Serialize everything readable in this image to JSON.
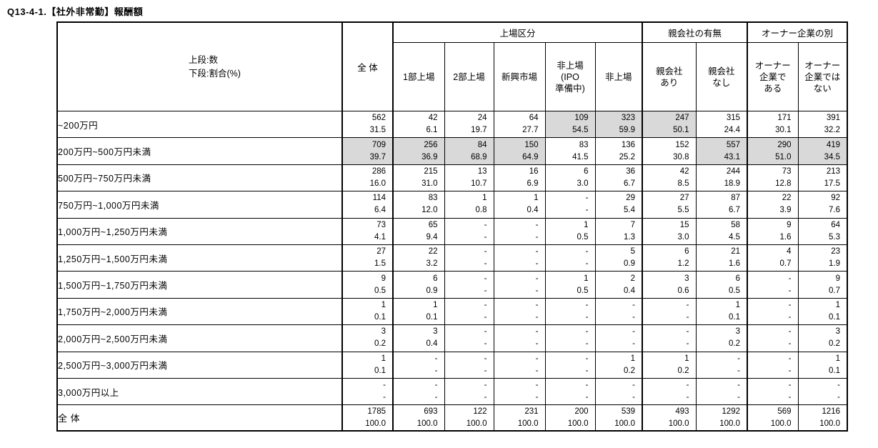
{
  "title": "Q13-4-1.【社外非常勤】報酬額",
  "table": {
    "legend": [
      "上段:数",
      "下段:割合(%)"
    ],
    "total_col_header": "全 体",
    "groups": [
      {
        "label": "上場区分",
        "cols": [
          "1部上場",
          "2部上場",
          "新興市場",
          "非上場\n(IPO\n準備中)",
          "非上場"
        ]
      },
      {
        "label": "親会社の有無",
        "cols": [
          "親会社\nあり",
          "親会社\nなし"
        ]
      },
      {
        "label": "オーナー企業の別",
        "cols": [
          "オーナー\n企業で\nある",
          "オーナー\n企業では\nない"
        ]
      }
    ],
    "highlight_color": "#d9d9d9",
    "rows": [
      {
        "label": "~200万円",
        "counts": [
          "562",
          "42",
          "24",
          "64",
          "109",
          "323",
          "247",
          "315",
          "171",
          "391"
        ],
        "pcts": [
          "31.5",
          "6.1",
          "19.7",
          "27.7",
          "54.5",
          "59.9",
          "50.1",
          "24.4",
          "30.1",
          "32.2"
        ],
        "highlight": [
          4,
          5,
          6
        ]
      },
      {
        "label": "200万円~500万円未満",
        "counts": [
          "709",
          "256",
          "84",
          "150",
          "83",
          "136",
          "152",
          "557",
          "290",
          "419"
        ],
        "pcts": [
          "39.7",
          "36.9",
          "68.9",
          "64.9",
          "41.5",
          "25.2",
          "30.8",
          "43.1",
          "51.0",
          "34.5"
        ],
        "highlight": [
          0,
          1,
          2,
          3,
          7,
          8,
          9
        ]
      },
      {
        "label": "500万円~750万円未満",
        "counts": [
          "286",
          "215",
          "13",
          "16",
          "6",
          "36",
          "42",
          "244",
          "73",
          "213"
        ],
        "pcts": [
          "16.0",
          "31.0",
          "10.7",
          "6.9",
          "3.0",
          "6.7",
          "8.5",
          "18.9",
          "12.8",
          "17.5"
        ],
        "highlight": []
      },
      {
        "label": "750万円~1,000万円未満",
        "counts": [
          "114",
          "83",
          "1",
          "1",
          "-",
          "29",
          "27",
          "87",
          "22",
          "92"
        ],
        "pcts": [
          "6.4",
          "12.0",
          "0.8",
          "0.4",
          "-",
          "5.4",
          "5.5",
          "6.7",
          "3.9",
          "7.6"
        ],
        "highlight": []
      },
      {
        "label": "1,000万円~1,250万円未満",
        "counts": [
          "73",
          "65",
          "-",
          "-",
          "1",
          "7",
          "15",
          "58",
          "9",
          "64"
        ],
        "pcts": [
          "4.1",
          "9.4",
          "-",
          "-",
          "0.5",
          "1.3",
          "3.0",
          "4.5",
          "1.6",
          "5.3"
        ],
        "highlight": []
      },
      {
        "label": "1,250万円~1,500万円未満",
        "counts": [
          "27",
          "22",
          "-",
          "-",
          "-",
          "5",
          "6",
          "21",
          "4",
          "23"
        ],
        "pcts": [
          "1.5",
          "3.2",
          "-",
          "-",
          "-",
          "0.9",
          "1.2",
          "1.6",
          "0.7",
          "1.9"
        ],
        "highlight": []
      },
      {
        "label": "1,500万円~1,750万円未満",
        "counts": [
          "9",
          "6",
          "-",
          "-",
          "1",
          "2",
          "3",
          "6",
          "-",
          "9"
        ],
        "pcts": [
          "0.5",
          "0.9",
          "-",
          "-",
          "0.5",
          "0.4",
          "0.6",
          "0.5",
          "-",
          "0.7"
        ],
        "highlight": []
      },
      {
        "label": "1,750万円~2,000万円未満",
        "counts": [
          "1",
          "1",
          "-",
          "-",
          "-",
          "-",
          "-",
          "1",
          "-",
          "1"
        ],
        "pcts": [
          "0.1",
          "0.1",
          "-",
          "-",
          "-",
          "-",
          "-",
          "0.1",
          "-",
          "0.1"
        ],
        "highlight": []
      },
      {
        "label": "2,000万円~2,500万円未満",
        "counts": [
          "3",
          "3",
          "-",
          "-",
          "-",
          "-",
          "-",
          "3",
          "-",
          "3"
        ],
        "pcts": [
          "0.2",
          "0.4",
          "-",
          "-",
          "-",
          "-",
          "-",
          "0.2",
          "-",
          "0.2"
        ],
        "highlight": []
      },
      {
        "label": "2,500万円~3,000万円未満",
        "counts": [
          "1",
          "-",
          "-",
          "-",
          "-",
          "1",
          "1",
          "-",
          "-",
          "1"
        ],
        "pcts": [
          "0.1",
          "-",
          "-",
          "-",
          "-",
          "0.2",
          "0.2",
          "-",
          "-",
          "0.1"
        ],
        "highlight": []
      },
      {
        "label": "3,000万円以上",
        "counts": [
          "-",
          "-",
          "-",
          "-",
          "-",
          "-",
          "-",
          "-",
          "-",
          "-"
        ],
        "pcts": [
          "-",
          "-",
          "-",
          "-",
          "-",
          "-",
          "-",
          "-",
          "-",
          "-"
        ],
        "highlight": []
      }
    ],
    "total_row": {
      "label": "全 体",
      "counts": [
        "1785",
        "693",
        "122",
        "231",
        "200",
        "539",
        "493",
        "1292",
        "569",
        "1216"
      ],
      "pcts": [
        "100.0",
        "100.0",
        "100.0",
        "100.0",
        "100.0",
        "100.0",
        "100.0",
        "100.0",
        "100.0",
        "100.0"
      ],
      "highlight": []
    }
  }
}
